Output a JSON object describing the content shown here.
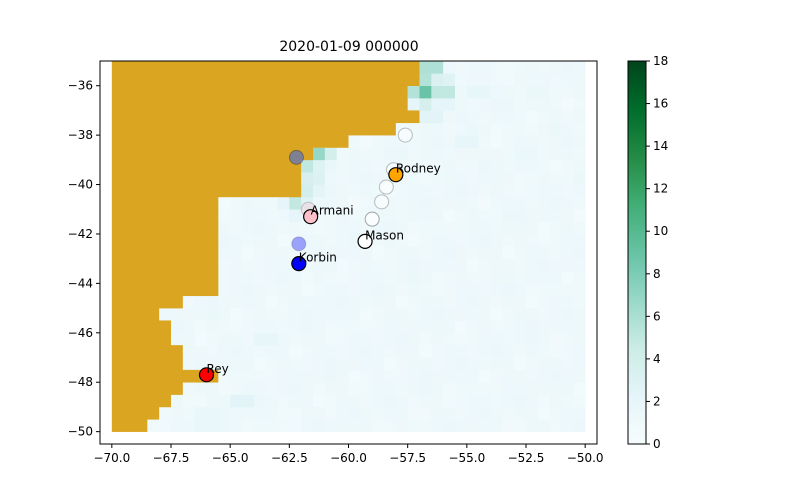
{
  "chart_data": {
    "type": "heatmap",
    "title": "2020-01-09 000000",
    "xlabel": "",
    "ylabel": "",
    "xlim": [
      -70.5,
      -49.5
    ],
    "ylim": [
      -50.5,
      -35
    ],
    "xticks": [
      -70.0,
      -67.5,
      -65.0,
      -62.5,
      -60.0,
      -57.5,
      -55.0,
      -52.5,
      -50.0
    ],
    "xtick_labels": [
      "−70.0",
      "−67.5",
      "−65.0",
      "−62.5",
      "−60.0",
      "−57.5",
      "−55.0",
      "−52.5",
      "−50.0"
    ],
    "yticks": [
      -36,
      -38,
      -40,
      -42,
      -44,
      -46,
      -48,
      -50
    ],
    "ytick_labels": [
      "−36",
      "−38",
      "−40",
      "−42",
      "−44",
      "−46",
      "−48",
      "−50"
    ],
    "colorbar": {
      "min": 0,
      "max": 18,
      "ticks": [
        0,
        2,
        4,
        6,
        8,
        10,
        12,
        14,
        16,
        18
      ],
      "tick_labels": [
        "0",
        "2",
        "4",
        "6",
        "8",
        "10",
        "12",
        "14",
        "16",
        "18"
      ],
      "colormap": "BuGn"
    },
    "grid": false,
    "land_color": "#DAA520",
    "land_regions": [
      {
        "lon": [
          -70.0,
          -57.0
        ],
        "lat": [
          -36.0,
          -35.0
        ]
      },
      {
        "lon": [
          -70.0,
          -57.5
        ],
        "lat": [
          -37.0,
          -36.0
        ]
      },
      {
        "lon": [
          -70.0,
          -57.0
        ],
        "lat": [
          -37.5,
          -37.0
        ]
      },
      {
        "lon": [
          -70.0,
          -58.0
        ],
        "lat": [
          -38.0,
          -37.5
        ]
      },
      {
        "lon": [
          -70.0,
          -60.0
        ],
        "lat": [
          -38.5,
          -38.0
        ]
      },
      {
        "lon": [
          -70.0,
          -61.5
        ],
        "lat": [
          -39.0,
          -38.5
        ]
      },
      {
        "lon": [
          -70.0,
          -62.0
        ],
        "lat": [
          -40.0,
          -39.0
        ]
      },
      {
        "lon": [
          -70.0,
          -62.0
        ],
        "lat": [
          -40.5,
          -40.0
        ]
      },
      {
        "lon": [
          -70.0,
          -65.5
        ],
        "lat": [
          -41.0,
          -40.5
        ]
      },
      {
        "lon": [
          -70.0,
          -65.5
        ],
        "lat": [
          -44.5,
          -41.0
        ]
      },
      {
        "lon": [
          -70.0,
          -67.0
        ],
        "lat": [
          -45.0,
          -44.5
        ]
      },
      {
        "lon": [
          -70.0,
          -68.0
        ],
        "lat": [
          -45.5,
          -45.0
        ]
      },
      {
        "lon": [
          -70.0,
          -67.5
        ],
        "lat": [
          -46.5,
          -45.5
        ]
      },
      {
        "lon": [
          -70.0,
          -67.0
        ],
        "lat": [
          -47.5,
          -46.5
        ]
      },
      {
        "lon": [
          -70.0,
          -65.5
        ],
        "lat": [
          -48.0,
          -47.5
        ]
      },
      {
        "lon": [
          -70.0,
          -67.0
        ],
        "lat": [
          -48.5,
          -48.0
        ]
      },
      {
        "lon": [
          -70.0,
          -67.5
        ],
        "lat": [
          -49.0,
          -48.5
        ]
      },
      {
        "lon": [
          -70.0,
          -68.0
        ],
        "lat": [
          -49.5,
          -49.0
        ]
      },
      {
        "lon": [
          -70.0,
          -68.5
        ],
        "lat": [
          -50.0,
          -49.5
        ]
      }
    ],
    "field_hotspots": [
      {
        "lon": -56.5,
        "lat": -35.3,
        "value": 7
      },
      {
        "lon": -57.3,
        "lat": -35.3,
        "value": 8
      },
      {
        "lon": -56.8,
        "lat": -36.2,
        "value": 9
      },
      {
        "lon": -56.0,
        "lat": -36.2,
        "value": 6
      },
      {
        "lon": -57.0,
        "lat": -36.0,
        "value": 8
      },
      {
        "lon": -56.5,
        "lat": -37.2,
        "value": 3
      },
      {
        "lon": -61.2,
        "lat": -38.7,
        "value": 7
      },
      {
        "lon": -61.7,
        "lat": -39.0,
        "value": 6
      },
      {
        "lon": -61.8,
        "lat": -39.4,
        "value": 5
      },
      {
        "lon": -62.2,
        "lat": -40.2,
        "value": 7
      },
      {
        "lon": -61.5,
        "lat": -39.9,
        "value": 4
      },
      {
        "lon": -62.2,
        "lat": -40.7,
        "value": 5
      },
      {
        "lon": -55.0,
        "lat": -38.3,
        "value": 2.5
      },
      {
        "lon": -54.5,
        "lat": -36.2,
        "value": 2.5
      },
      {
        "lon": -63.5,
        "lat": -46.2,
        "value": 2.5
      },
      {
        "lon": -64.5,
        "lat": -48.8,
        "value": 3
      },
      {
        "lon": -66.0,
        "lat": -49.5,
        "value": 2.5
      },
      {
        "lon": -61.0,
        "lat": -45.0,
        "value": 2
      },
      {
        "lon": -59.0,
        "lat": -44.0,
        "value": 2
      }
    ],
    "series": [
      {
        "name": "Rodney",
        "lon": -58.0,
        "lat": -39.6,
        "color": "#FFA500"
      },
      {
        "name": "Armani",
        "lon": -61.6,
        "lat": -41.3,
        "color": "#FFC0CB"
      },
      {
        "name": "Mason",
        "lon": -59.3,
        "lat": -42.3,
        "color": "#FFFFFF"
      },
      {
        "name": "Korbin",
        "lon": -62.1,
        "lat": -43.2,
        "color": "#0000FF"
      },
      {
        "name": "Rey",
        "lon": -66.0,
        "lat": -47.7,
        "color": "#FF0000"
      }
    ],
    "track_points": [
      {
        "lon": -62.2,
        "lat": -38.9,
        "color": "#4169E1",
        "alpha": 0.6
      },
      {
        "lon": -62.1,
        "lat": -42.4,
        "color": "#0000FF",
        "alpha": 0.35
      },
      {
        "lon": -61.7,
        "lat": -41.0,
        "color": "#FFC0CB",
        "alpha": 0.35
      },
      {
        "lon": -57.6,
        "lat": -38.0,
        "color": "#FFFFFF",
        "alpha": 0.5
      },
      {
        "lon": -58.1,
        "lat": -39.4,
        "color": "#FFFFFF",
        "alpha": 0.5
      },
      {
        "lon": -58.4,
        "lat": -40.1,
        "color": "#FFFFFF",
        "alpha": 0.5
      },
      {
        "lon": -58.6,
        "lat": -40.7,
        "color": "#FFFFFF",
        "alpha": 0.5
      },
      {
        "lon": -59.0,
        "lat": -41.4,
        "color": "#FFFFFF",
        "alpha": 0.7
      }
    ]
  }
}
